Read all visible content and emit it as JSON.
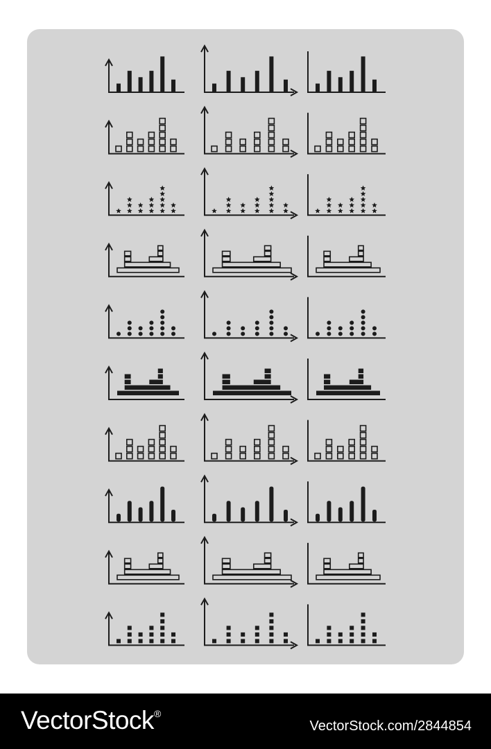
{
  "grid": {
    "columns": [
      "arrow-axes-short",
      "arrow-axes-full",
      "plain-axes"
    ],
    "rows": [
      "solid-bars",
      "stacked-squares",
      "stacked-stars",
      "horizontal-hollow-bars",
      "stacked-dots",
      "horizontal-solid-bars",
      "stacked-squares",
      "rounded-bars",
      "horizontal-hollow-bars",
      "stacked-small-squares"
    ],
    "bar_values": [
      1,
      3,
      2,
      3,
      4,
      1
    ],
    "colors": {
      "panel": "#d4d4d4",
      "ink": "#1c1c1c",
      "background": "#ffffff",
      "footer": "#000000"
    }
  },
  "footer": {
    "brand": "VectorStock",
    "brand_mark": "®",
    "image_id": "VectorStock.com/2844854"
  }
}
